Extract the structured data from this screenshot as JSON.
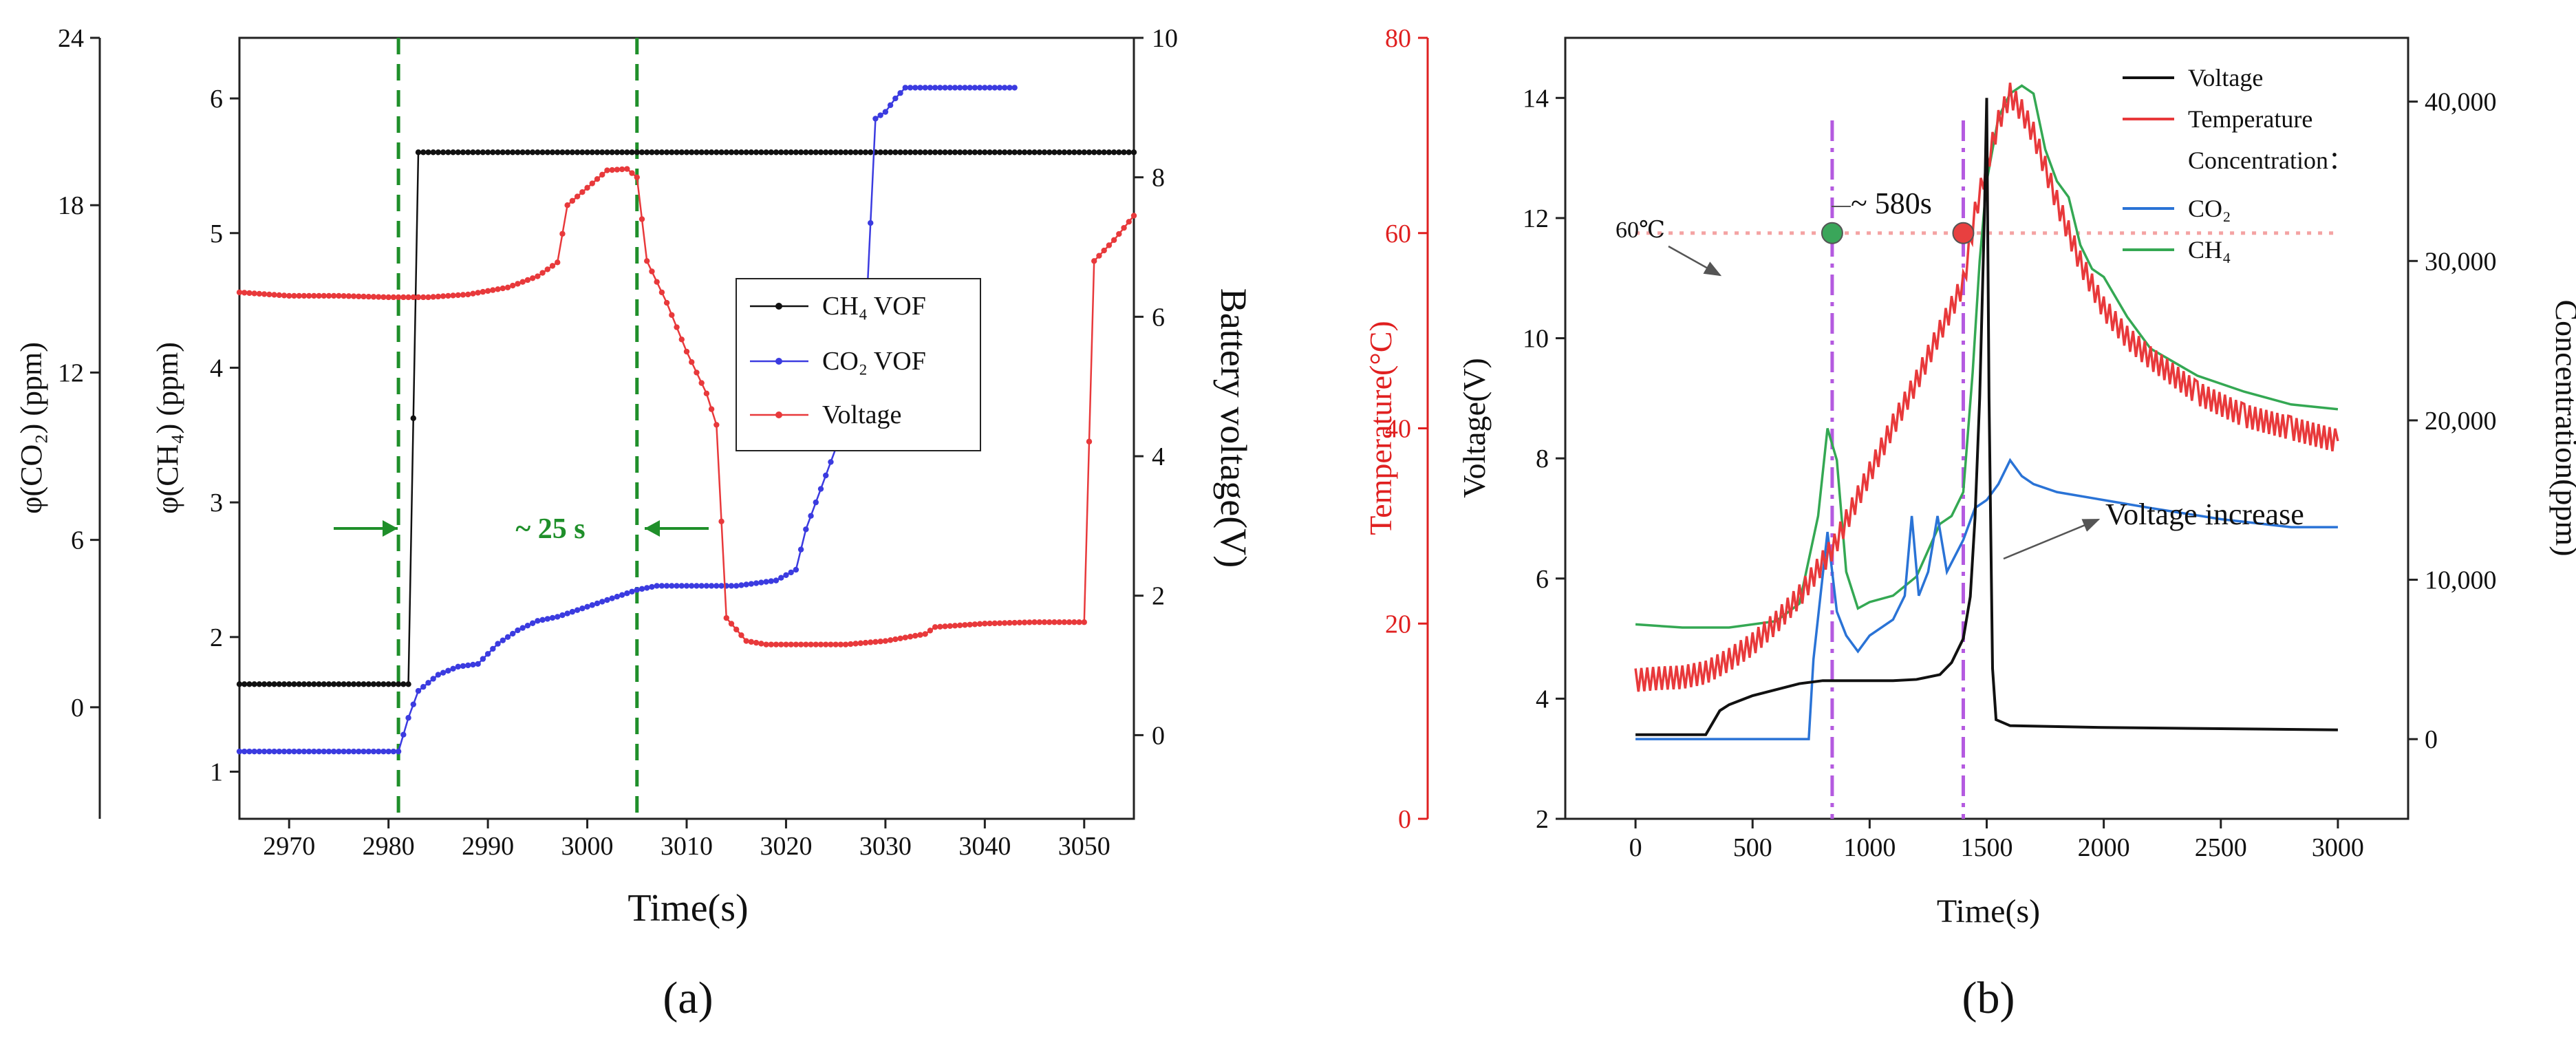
{
  "colors": {
    "black": "#111111",
    "red": "#e8393b",
    "blue": "#3b3be0",
    "blue_b": "#2a73d6",
    "green": "#34a853",
    "dash_green": "#1f8f2a",
    "purple": "#b45ae0",
    "ref_line": "#f4a3a3",
    "red_axis": "#e02020"
  },
  "chart_data": [
    {
      "panel": "(a)",
      "caption": "(a)",
      "type": "line",
      "xlabel": "Time(s)",
      "xlim": [
        2965,
        3055
      ],
      "x_ticks": [
        2970,
        2980,
        2990,
        3000,
        3010,
        3020,
        3030,
        3040,
        3050
      ],
      "axes": {
        "co2_left": {
          "label": "φ(CO₂) (ppm)",
          "lim": [
            -4,
            24
          ],
          "ticks": [
            0,
            6,
            12,
            18,
            24
          ]
        },
        "ch4_left": {
          "label": "φ(CH₄) (ppm)",
          "lim": [
            0.65,
            6.45
          ],
          "ticks": [
            1,
            2,
            3,
            4,
            5,
            6
          ]
        },
        "voltage_right": {
          "label": "Battery voltage(V)",
          "lim": [
            -1.2,
            10
          ],
          "ticks": [
            0,
            2,
            4,
            6,
            8,
            10
          ]
        }
      },
      "legend": [
        "CH₄ VOF",
        "CO₂ VOF",
        "Voltage"
      ],
      "legend_position": "center-right",
      "series": [
        {
          "name": "CH₄ VOF",
          "axis": "ch4_left",
          "color": "black",
          "points": [
            [
              2965,
              1.65
            ],
            [
              2982,
              1.65
            ],
            [
              2983,
              5.6
            ],
            [
              3055,
              5.6
            ]
          ]
        },
        {
          "name": "CO₂ VOF",
          "axis": "ch4_left",
          "color": "blue",
          "points": [
            [
              2965,
              1.15
            ],
            [
              2981,
              1.15
            ],
            [
              2982,
              1.4
            ],
            [
              2983,
              1.6
            ],
            [
              2985,
              1.72
            ],
            [
              2987,
              1.78
            ],
            [
              2989,
              1.8
            ],
            [
              2991,
              1.95
            ],
            [
              2993,
              2.05
            ],
            [
              2995,
              2.12
            ],
            [
              2997,
              2.15
            ],
            [
              2999,
              2.2
            ],
            [
              3001,
              2.25
            ],
            [
              3003,
              2.3
            ],
            [
              3005,
              2.35
            ],
            [
              3007,
              2.38
            ],
            [
              3010,
              2.38
            ],
            [
              3015,
              2.38
            ],
            [
              3019,
              2.42
            ],
            [
              3021,
              2.5
            ],
            [
              3022,
              2.8
            ],
            [
              3023,
              3.0
            ],
            [
              3024,
              3.2
            ],
            [
              3026,
              3.6
            ],
            [
              3027,
              4.0
            ],
            [
              3028,
              4.3
            ],
            [
              3029,
              5.85
            ],
            [
              3030,
              5.9
            ],
            [
              3031,
              6.0
            ],
            [
              3032,
              6.08
            ],
            [
              3043,
              6.08
            ]
          ]
        },
        {
          "name": "Voltage",
          "axis": "voltage_right",
          "color": "red",
          "points": [
            [
              2965,
              6.35
            ],
            [
              2970,
              6.3
            ],
            [
              2975,
              6.3
            ],
            [
              2980,
              6.28
            ],
            [
              2984,
              6.28
            ],
            [
              2988,
              6.32
            ],
            [
              2992,
              6.42
            ],
            [
              2995,
              6.58
            ],
            [
              2997,
              6.78
            ],
            [
              2998,
              7.6
            ],
            [
              3000,
              7.85
            ],
            [
              3002,
              8.1
            ],
            [
              3004,
              8.12
            ],
            [
              3005,
              8.0
            ],
            [
              3006,
              6.8
            ],
            [
              3008,
              6.2
            ],
            [
              3010,
              5.5
            ],
            [
              3012,
              4.9
            ],
            [
              3013,
              4.45
            ],
            [
              3014,
              1.68
            ],
            [
              3016,
              1.35
            ],
            [
              3018,
              1.3
            ],
            [
              3022,
              1.3
            ],
            [
              3026,
              1.3
            ],
            [
              3030,
              1.35
            ],
            [
              3034,
              1.45
            ],
            [
              3035,
              1.55
            ],
            [
              3040,
              1.6
            ],
            [
              3045,
              1.62
            ],
            [
              3050,
              1.62
            ],
            [
              3051,
              6.8
            ],
            [
              3053,
              7.1
            ],
            [
              3055,
              7.45
            ]
          ]
        }
      ],
      "annotations": {
        "interval_label": "~ 25 s",
        "interval_start": 2981,
        "interval_end": 3005
      }
    },
    {
      "panel": "(b)",
      "caption": "(b)",
      "type": "line",
      "xlabel": "Time(s)",
      "xlim": [
        -300,
        3300
      ],
      "x_ticks": [
        0,
        500,
        1000,
        1500,
        2000,
        2500,
        3000
      ],
      "axes": {
        "temperature_left": {
          "label": "Temperature(°C)",
          "lim": [
            0,
            80
          ],
          "ticks": [
            0,
            20,
            40,
            60,
            80
          ]
        },
        "voltage_left": {
          "label": "Voltage(V)",
          "lim": [
            2,
            15
          ],
          "ticks": [
            2,
            4,
            6,
            8,
            10,
            12,
            14
          ]
        },
        "concentration_right": {
          "label": "Concentration(ppm)",
          "lim": [
            -5000,
            44000
          ],
          "ticks": [
            0,
            10000,
            20000,
            30000,
            40000
          ],
          "tick_labels": [
            "0",
            "10,000",
            "20,000",
            "30,000",
            "40,000"
          ]
        }
      },
      "legend": [
        "Voltage",
        "Temperature",
        "Concentration：",
        "CO₂",
        "CH₄"
      ],
      "legend_position": "top-right",
      "series": [
        {
          "name": "Voltage",
          "axis": "voltage_left",
          "color": "black",
          "points": [
            [
              0,
              3.4
            ],
            [
              300,
              3.4
            ],
            [
              330,
              3.6
            ],
            [
              360,
              3.8
            ],
            [
              400,
              3.9
            ],
            [
              500,
              4.05
            ],
            [
              600,
              4.15
            ],
            [
              700,
              4.25
            ],
            [
              800,
              4.3
            ],
            [
              900,
              4.3
            ],
            [
              1000,
              4.3
            ],
            [
              1100,
              4.3
            ],
            [
              1200,
              4.32
            ],
            [
              1300,
              4.4
            ],
            [
              1350,
              4.6
            ],
            [
              1400,
              5.0
            ],
            [
              1430,
              5.7
            ],
            [
              1450,
              7.0
            ],
            [
              1470,
              9.0
            ],
            [
              1490,
              12.0
            ],
            [
              1500,
              14.0
            ],
            [
              1510,
              9.0
            ],
            [
              1525,
              4.5
            ],
            [
              1540,
              3.65
            ],
            [
              1600,
              3.55
            ],
            [
              2000,
              3.52
            ],
            [
              2500,
              3.5
            ],
            [
              3000,
              3.48
            ]
          ]
        },
        {
          "name": "Temperature",
          "axis": "temperature_left",
          "color": "red",
          "points": [
            [
              0,
              14.2
            ],
            [
              100,
              14.4
            ],
            [
              200,
              14.5
            ],
            [
              300,
              15.0
            ],
            [
              400,
              16.3
            ],
            [
              500,
              17.9
            ],
            [
              600,
              20.1
            ],
            [
              700,
              22.8
            ],
            [
              800,
              26.3
            ],
            [
              850,
              28.0
            ],
            [
              900,
              30.5
            ],
            [
              1000,
              35.4
            ],
            [
              1100,
              40.3
            ],
            [
              1200,
              44.8
            ],
            [
              1300,
              49.9
            ],
            [
              1400,
              54.8
            ],
            [
              1450,
              62.0
            ],
            [
              1500,
              66.9
            ],
            [
              1550,
              71.4
            ],
            [
              1600,
              74.2
            ],
            [
              1650,
              72.5
            ],
            [
              1700,
              70.2
            ],
            [
              1800,
              63.2
            ],
            [
              1900,
              57.0
            ],
            [
              2000,
              52.3
            ],
            [
              2100,
              49.3
            ],
            [
              2200,
              47.2
            ],
            [
              2400,
              43.6
            ],
            [
              2600,
              41.3
            ],
            [
              2800,
              40.0
            ],
            [
              3000,
              38.7
            ]
          ]
        },
        {
          "name": "CO₂",
          "axis": "concentration_right",
          "color": "blue_b",
          "points": [
            [
              0,
              0
            ],
            [
              740,
              0
            ],
            [
              760,
              5000
            ],
            [
              790,
              9000
            ],
            [
              820,
              13000
            ],
            [
              860,
              8000
            ],
            [
              900,
              6500
            ],
            [
              950,
              5500
            ],
            [
              1000,
              6500
            ],
            [
              1100,
              7500
            ],
            [
              1150,
              9000
            ],
            [
              1180,
              14000
            ],
            [
              1210,
              9000
            ],
            [
              1250,
              10500
            ],
            [
              1290,
              14000
            ],
            [
              1330,
              10500
            ],
            [
              1400,
              12500
            ],
            [
              1450,
              14500
            ],
            [
              1500,
              15000
            ],
            [
              1550,
              16000
            ],
            [
              1600,
              17500
            ],
            [
              1650,
              16500
            ],
            [
              1700,
              16000
            ],
            [
              1800,
              15500
            ],
            [
              2000,
              15000
            ],
            [
              2200,
              14500
            ],
            [
              2500,
              13800
            ],
            [
              2800,
              13300
            ],
            [
              3000,
              13300
            ]
          ]
        },
        {
          "name": "CH₄",
          "axis": "concentration_right",
          "color": "green",
          "points": [
            [
              0,
              7200
            ],
            [
              200,
              7000
            ],
            [
              400,
              7000
            ],
            [
              600,
              7400
            ],
            [
              700,
              8500
            ],
            [
              780,
              14000
            ],
            [
              820,
              19500
            ],
            [
              860,
              17500
            ],
            [
              900,
              10500
            ],
            [
              950,
              8200
            ],
            [
              1000,
              8600
            ],
            [
              1100,
              9000
            ],
            [
              1200,
              10200
            ],
            [
              1300,
              13500
            ],
            [
              1350,
              14000
            ],
            [
              1400,
              15500
            ],
            [
              1440,
              23000
            ],
            [
              1470,
              30000
            ],
            [
              1500,
              35000
            ],
            [
              1550,
              39000
            ],
            [
              1600,
              40500
            ],
            [
              1650,
              41000
            ],
            [
              1700,
              40500
            ],
            [
              1750,
              37000
            ],
            [
              1800,
              35000
            ],
            [
              1850,
              34000
            ],
            [
              1900,
              31000
            ],
            [
              1950,
              29500
            ],
            [
              2000,
              29000
            ],
            [
              2100,
              26500
            ],
            [
              2200,
              24500
            ],
            [
              2400,
              22800
            ],
            [
              2600,
              21800
            ],
            [
              2800,
              21000
            ],
            [
              3000,
              20700
            ]
          ]
        }
      ],
      "reference_lines": {
        "temperature_ref": 60,
        "event_1_time": 840,
        "event_2_time": 1400
      },
      "annotations": {
        "ref_label": "60℃",
        "interval_label": "~ 580s",
        "arrow_label": "Voltage increase"
      }
    }
  ]
}
